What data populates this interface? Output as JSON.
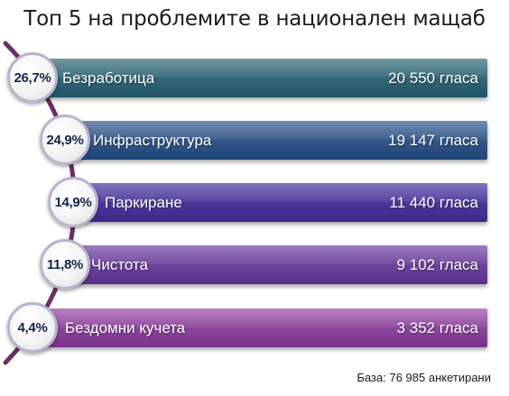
{
  "title": "Топ 5 на проблемите в национален мащаб",
  "base_note": "База:  76 985 анкетирани",
  "colors": {
    "arc": "#6e2f63",
    "bubble_text": "#14244a"
  },
  "chart_data": {
    "type": "bar",
    "categories": [
      "Безработица",
      "Инфраструктура",
      "Паркиране",
      "Чистота",
      "Бездомни кучета"
    ],
    "series": [
      {
        "name": "%",
        "values": [
          26.7,
          24.9,
          14.9,
          11.8,
          4.4
        ]
      },
      {
        "name": "гласа",
        "values": [
          20550,
          19147,
          11440,
          9102,
          3352
        ]
      }
    ],
    "items": [
      {
        "label": "Безработица",
        "percent_label": "26,7%",
        "votes_label": "20 550  гласа",
        "percent": 26.7,
        "votes": 20550,
        "color_top": "#4b7a8a",
        "color_bottom": "#1e5466"
      },
      {
        "label": "Инфраструктура",
        "percent_label": "24,9%",
        "votes_label": "19 147 гласа",
        "percent": 24.9,
        "votes": 19147,
        "color_top": "#4a6a9a",
        "color_bottom": "#1f4478"
      },
      {
        "label": "Паркиране",
        "percent_label": "14,9%",
        "votes_label": "11 440 гласа",
        "percent": 14.9,
        "votes": 11440,
        "color_top": "#5e4cac",
        "color_bottom": "#3a2788"
      },
      {
        "label": "Чистота",
        "percent_label": "11,8%",
        "votes_label": "9 102  гласа",
        "percent": 11.8,
        "votes": 9102,
        "color_top": "#8057ad",
        "color_bottom": "#5a2f8a"
      },
      {
        "label": "Бездомни кучета",
        "percent_label": "4,4%",
        "votes_label": "3 352 гласа",
        "percent": 4.4,
        "votes": 3352,
        "color_top": "#a15cb0",
        "color_bottom": "#78318a"
      }
    ]
  }
}
